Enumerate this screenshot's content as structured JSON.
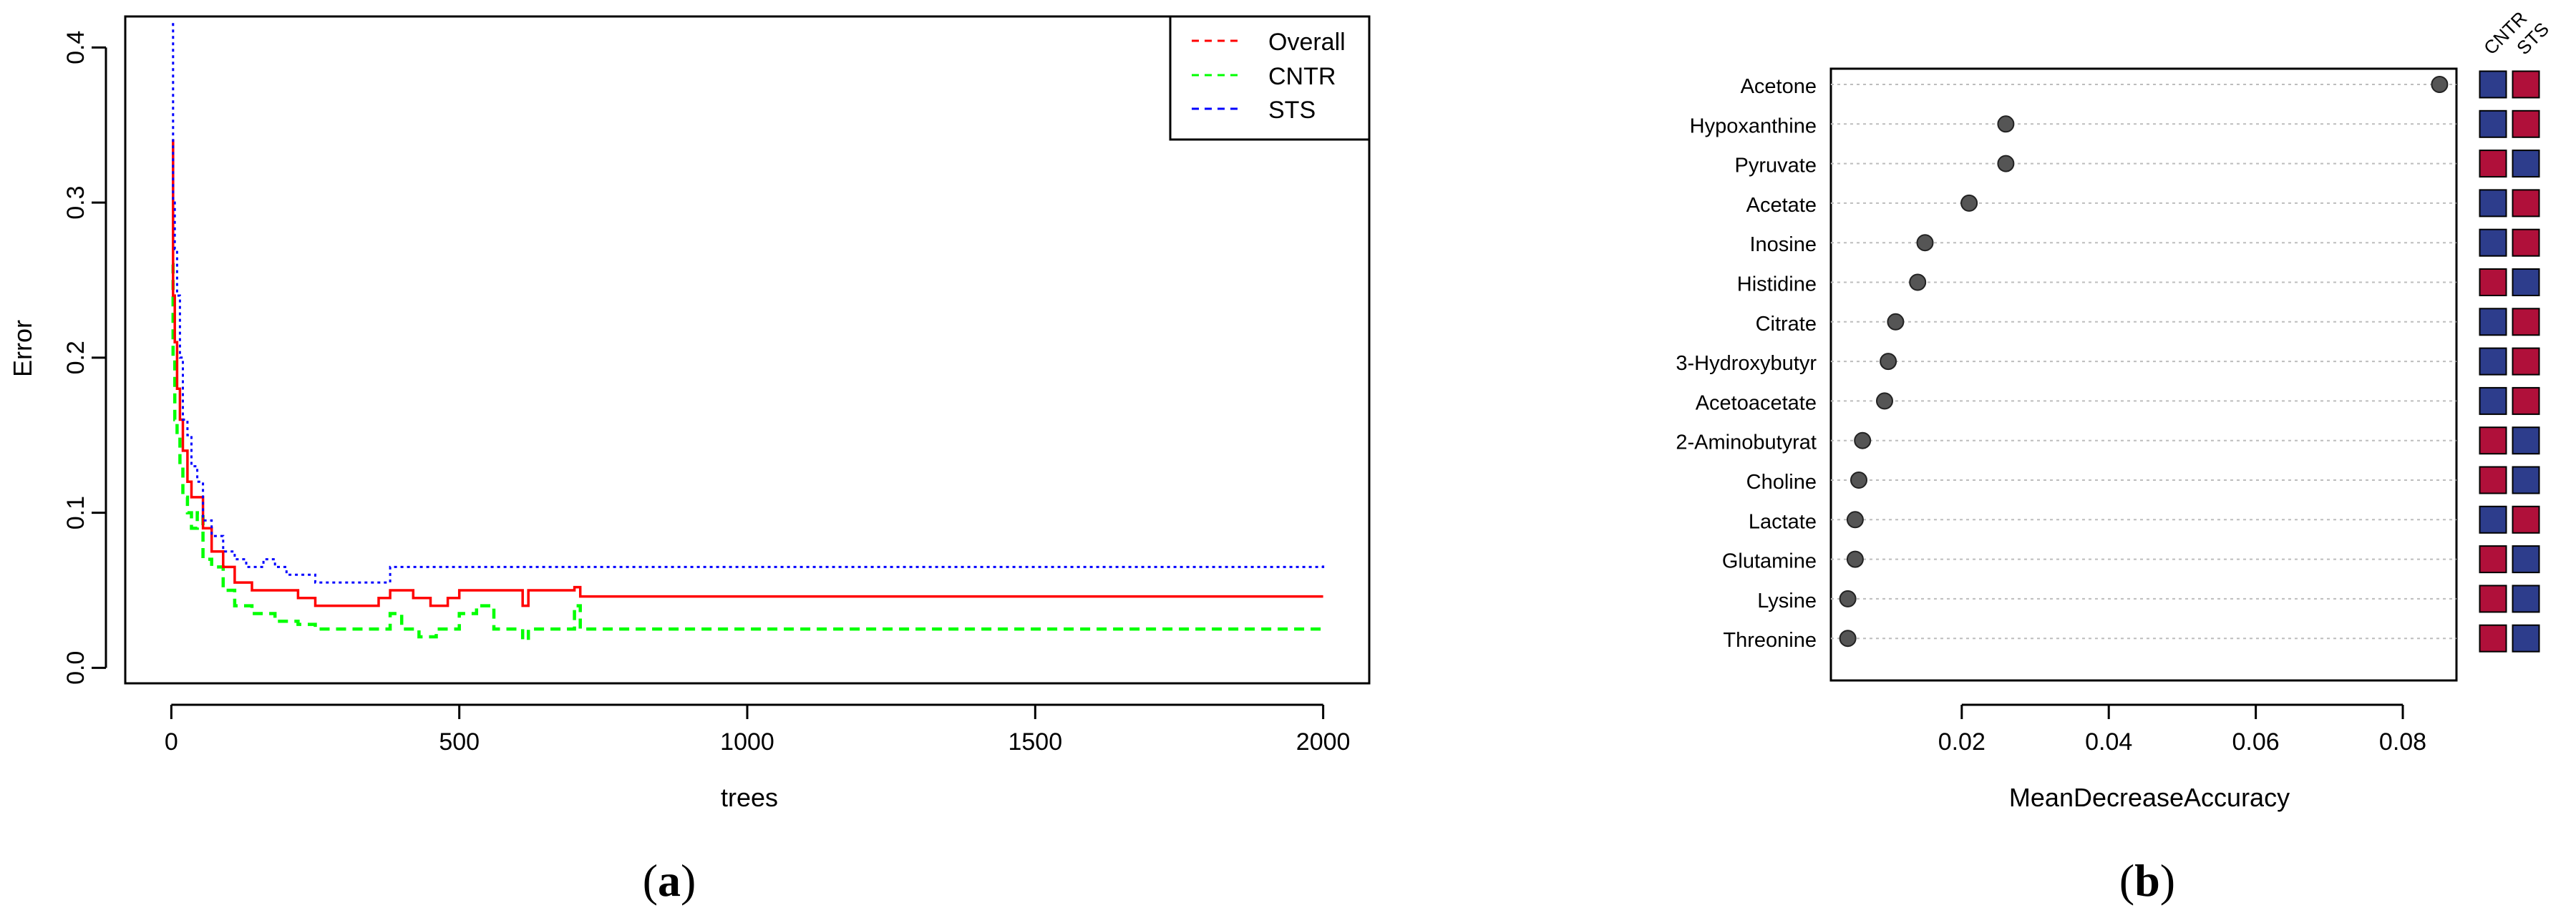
{
  "chart_data": [
    {
      "type": "line",
      "panel_label": "(a)",
      "panel_label_letter": "a",
      "xlabel": "trees",
      "ylabel": "Error",
      "xlim": [
        -80,
        2080
      ],
      "ylim": [
        -0.01,
        0.42
      ],
      "xticks": [
        0,
        500,
        1000,
        1500,
        2000
      ],
      "yticks": [
        0.0,
        0.1,
        0.2,
        0.3,
        0.4
      ],
      "ytick_labels": [
        "0.0",
        "0.1",
        "0.2",
        "0.3",
        "0.4"
      ],
      "grid": false,
      "legend_position": "top-right",
      "series": [
        {
          "name": "Overall",
          "color": "#ff0000",
          "points": [
            [
              1,
              0.34
            ],
            [
              3,
              0.24
            ],
            [
              6,
              0.21
            ],
            [
              10,
              0.18
            ],
            [
              15,
              0.16
            ],
            [
              20,
              0.14
            ],
            [
              28,
              0.12
            ],
            [
              35,
              0.11
            ],
            [
              45,
              0.11
            ],
            [
              55,
              0.09
            ],
            [
              70,
              0.075
            ],
            [
              90,
              0.065
            ],
            [
              110,
              0.055
            ],
            [
              140,
              0.05
            ],
            [
              180,
              0.05
            ],
            [
              220,
              0.045
            ],
            [
              250,
              0.04
            ],
            [
              350,
              0.04
            ],
            [
              360,
              0.045
            ],
            [
              380,
              0.05
            ],
            [
              420,
              0.045
            ],
            [
              450,
              0.04
            ],
            [
              480,
              0.045
            ],
            [
              500,
              0.05
            ],
            [
              530,
              0.05
            ],
            [
              600,
              0.05
            ],
            [
              610,
              0.04
            ],
            [
              620,
              0.05
            ],
            [
              690,
              0.05
            ],
            [
              700,
              0.052
            ],
            [
              710,
              0.046
            ],
            [
              2000,
              0.046
            ]
          ]
        },
        {
          "name": "CNTR",
          "color": "#00ff00",
          "points": [
            [
              1,
              0.26
            ],
            [
              3,
              0.2
            ],
            [
              6,
              0.16
            ],
            [
              10,
              0.15
            ],
            [
              15,
              0.13
            ],
            [
              20,
              0.11
            ],
            [
              28,
              0.1
            ],
            [
              35,
              0.09
            ],
            [
              45,
              0.1
            ],
            [
              55,
              0.07
            ],
            [
              70,
              0.065
            ],
            [
              90,
              0.05
            ],
            [
              110,
              0.04
            ],
            [
              140,
              0.035
            ],
            [
              180,
              0.03
            ],
            [
              220,
              0.028
            ],
            [
              250,
              0.025
            ],
            [
              350,
              0.025
            ],
            [
              380,
              0.035
            ],
            [
              400,
              0.025
            ],
            [
              430,
              0.02
            ],
            [
              460,
              0.025
            ],
            [
              500,
              0.035
            ],
            [
              530,
              0.04
            ],
            [
              560,
              0.025
            ],
            [
              600,
              0.025
            ],
            [
              610,
              0.018
            ],
            [
              620,
              0.025
            ],
            [
              690,
              0.025
            ],
            [
              700,
              0.04
            ],
            [
              710,
              0.025
            ],
            [
              2000,
              0.025
            ]
          ]
        },
        {
          "name": "STS",
          "color": "#0000ff",
          "points": [
            [
              1,
              0.415
            ],
            [
              3,
              0.3
            ],
            [
              6,
              0.27
            ],
            [
              10,
              0.24
            ],
            [
              15,
              0.2
            ],
            [
              20,
              0.16
            ],
            [
              28,
              0.15
            ],
            [
              35,
              0.13
            ],
            [
              45,
              0.12
            ],
            [
              55,
              0.095
            ],
            [
              70,
              0.085
            ],
            [
              90,
              0.075
            ],
            [
              110,
              0.07
            ],
            [
              130,
              0.065
            ],
            [
              160,
              0.07
            ],
            [
              180,
              0.065
            ],
            [
              200,
              0.06
            ],
            [
              250,
              0.055
            ],
            [
              350,
              0.055
            ],
            [
              380,
              0.065
            ],
            [
              2000,
              0.066
            ]
          ]
        }
      ]
    },
    {
      "type": "scatter",
      "panel_label": "(b)",
      "panel_label_letter": "b",
      "xlabel": "MeanDecreaseAccuracy",
      "ylabel": "",
      "xlim": [
        0.0022,
        0.0873
      ],
      "xticks": [
        0.02,
        0.04,
        0.06,
        0.08
      ],
      "xtick_labels": [
        "0.02",
        "0.04",
        "0.06",
        "0.08"
      ],
      "grid": true,
      "categories": [
        "Acetone",
        "Hypoxanthine",
        "Pyruvate",
        "Acetate",
        "Inosine",
        "Histidine",
        "Citrate",
        "3-Hydroxybutyr",
        "Acetoacetate",
        "2-Aminobutyrat",
        "Choline",
        "Lactate",
        "Glutamine",
        "Lysine",
        "Threonine"
      ],
      "values": [
        0.085,
        0.026,
        0.026,
        0.021,
        0.015,
        0.014,
        0.011,
        0.01,
        0.0095,
        0.0065,
        0.006,
        0.0055,
        0.0055,
        0.0045,
        0.0045
      ],
      "heatmap": {
        "columns": [
          "CNTR",
          "STS"
        ],
        "colors": {
          "high": "#b0103a",
          "low": "#2d3d8c"
        },
        "cells": [
          [
            "low",
            "high"
          ],
          [
            "low",
            "high"
          ],
          [
            "high",
            "low"
          ],
          [
            "low",
            "high"
          ],
          [
            "low",
            "high"
          ],
          [
            "high",
            "low"
          ],
          [
            "low",
            "high"
          ],
          [
            "low",
            "high"
          ],
          [
            "low",
            "high"
          ],
          [
            "high",
            "low"
          ],
          [
            "high",
            "low"
          ],
          [
            "low",
            "high"
          ],
          [
            "high",
            "low"
          ],
          [
            "high",
            "low"
          ],
          [
            "high",
            "low"
          ]
        ]
      }
    }
  ]
}
